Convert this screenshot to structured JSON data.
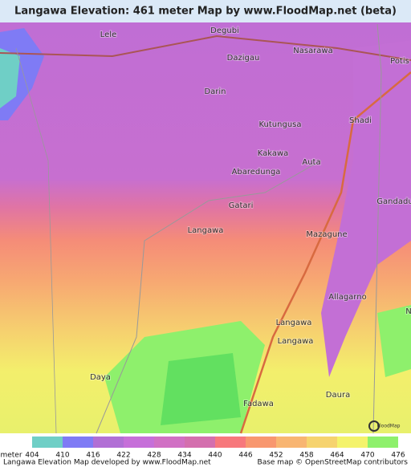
{
  "header": {
    "title": "Langawa Elevation: 461 meter Map by www.FloodMap.net (beta)"
  },
  "places": [
    "Lele",
    "Degubi",
    "Dazigau",
    "Nasarawa",
    "Potis",
    "Darin",
    "Shadi",
    "Kutungusa",
    "Kakawa",
    "Abaredunga",
    "Auta",
    "Gatari",
    "Gandadu",
    "Langawa",
    "Mazagune",
    "Allagarno",
    "N",
    "Langawa",
    "Langawa",
    "Daya",
    "Fadawa",
    "Daura"
  ],
  "logo": "FloodMap",
  "legend": {
    "unit": "meter",
    "values": [
      404,
      410,
      416,
      422,
      428,
      434,
      440,
      446,
      452,
      458,
      464,
      470,
      476
    ],
    "colors": [
      "#6fcfc6",
      "#7f7bf5",
      "#b16fd5",
      "#c66fd9",
      "#d170c4",
      "#d46fae",
      "#f7787c",
      "#f8976f",
      "#f8b572",
      "#f6d36f",
      "#f4f36c",
      "#8ef06c"
    ]
  },
  "footer": {
    "left": "Langawa Elevation Map developed by www.FloodMap.net",
    "right": "Base map © OpenStreetMap contributors"
  }
}
